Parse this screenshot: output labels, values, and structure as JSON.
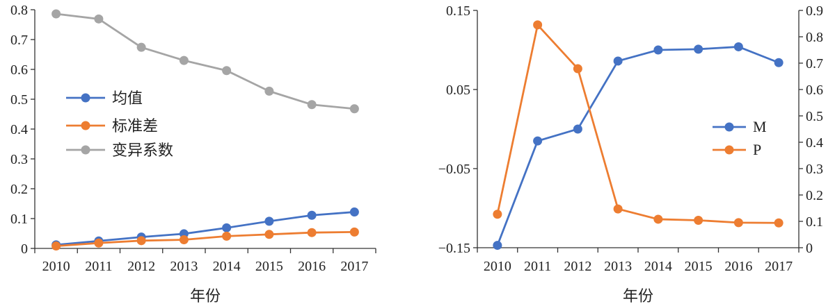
{
  "chart_data": [
    {
      "type": "line",
      "xlabel": "年份",
      "categories": [
        "2010",
        "2011",
        "2012",
        "2013",
        "2014",
        "2015",
        "2016",
        "2017"
      ],
      "ylim": [
        0,
        0.8
      ],
      "yticks": [
        "0",
        "0.1",
        "0.2",
        "0.3",
        "0.4",
        "0.5",
        "0.6",
        "0.7",
        "0.8"
      ],
      "grid": false,
      "legend": "center-left",
      "series": [
        {
          "name": "均值",
          "color": "#4472c4",
          "values": [
            0.012,
            0.025,
            0.038,
            0.049,
            0.069,
            0.091,
            0.111,
            0.122
          ]
        },
        {
          "name": "标准差",
          "color": "#ed7d31",
          "values": [
            0.008,
            0.018,
            0.026,
            0.029,
            0.041,
            0.047,
            0.053,
            0.055
          ]
        },
        {
          "name": "变异系数",
          "color": "#a5a5a5",
          "values": [
            0.786,
            0.769,
            0.674,
            0.63,
            0.596,
            0.527,
            0.482,
            0.468
          ]
        }
      ]
    },
    {
      "type": "line",
      "xlabel": "年份",
      "categories": [
        "2010",
        "2011",
        "2012",
        "2013",
        "2014",
        "2015",
        "2016",
        "2017"
      ],
      "ylim": [
        -0.15,
        0.15
      ],
      "yticks": [
        "-0.15",
        "-0.05",
        "0.05",
        "0.15"
      ],
      "y2lim": [
        0,
        0.9
      ],
      "y2ticks": [
        "0",
        "0.1",
        "0.2",
        "0.3",
        "0.4",
        "0.5",
        "0.6",
        "0.7",
        "0.8",
        "0.9"
      ],
      "grid": false,
      "legend": "right",
      "series": [
        {
          "name": "M",
          "axis": "left",
          "color": "#4472c4",
          "values": [
            -0.147,
            -0.015,
            0.0,
            0.086,
            0.1,
            0.101,
            0.104,
            0.084
          ]
        },
        {
          "name": "P",
          "axis": "right",
          "color": "#ed7d31",
          "values": [
            0.127,
            0.845,
            0.679,
            0.147,
            0.108,
            0.104,
            0.095,
            0.094
          ]
        }
      ]
    }
  ]
}
